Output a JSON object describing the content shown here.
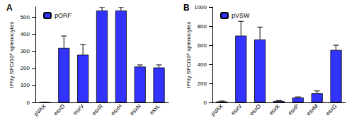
{
  "chart_data": [
    {
      "type": "bar",
      "title": "A",
      "ylabel": "IFNγ SFC/10⁶ splenocytes",
      "categories": [
        "pVAX",
        "esxO",
        "esxV",
        "esxR",
        "esxH",
        "esxN",
        "esxL"
      ],
      "series": [
        {
          "name": "pORF",
          "color": "#3333ff",
          "values": [
            0,
            320,
            280,
            540,
            540,
            210,
            205
          ],
          "errors": [
            0,
            70,
            60,
            20,
            20,
            10,
            15
          ]
        }
      ],
      "ylim": [
        0,
        560
      ],
      "yticks": [
        0,
        100,
        200,
        300,
        400,
        500
      ],
      "legend": "upper left",
      "grid": false
    },
    {
      "type": "bar",
      "title": "B",
      "ylabel": "IFNγ SFC/10⁶ splenocytes",
      "categories": [
        "pVAX",
        "esxV",
        "esxO",
        "esxK",
        "esxP",
        "esxM",
        "esxG"
      ],
      "series": [
        {
          "name": "pVSW",
          "color": "#3333ff",
          "values": [
            10,
            700,
            660,
            15,
            50,
            95,
            550
          ],
          "errors": [
            5,
            150,
            130,
            5,
            8,
            25,
            50
          ]
        }
      ],
      "ylim": [
        0,
        1000
      ],
      "yticks": [
        0,
        200,
        400,
        600,
        800,
        1000
      ],
      "legend": "upper left",
      "grid": false
    }
  ]
}
